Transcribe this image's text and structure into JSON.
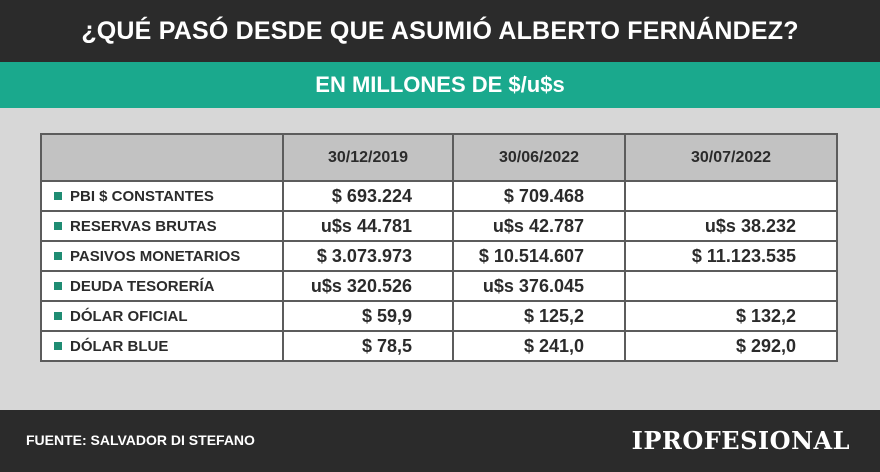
{
  "header": {
    "title": "¿QUÉ PASÓ DESDE QUE ASUMIÓ ALBERTO FERNÁNDEZ?",
    "subtitle": "EN MILLONES DE $/u$s"
  },
  "table": {
    "columns": [
      "",
      "30/12/2019",
      "30/06/2022",
      "30/07/2022"
    ],
    "rows": [
      {
        "label": "PBI $ CONSTANTES",
        "values": [
          "$ 693.224",
          "$ 709.468",
          ""
        ]
      },
      {
        "label": "RESERVAS BRUTAS",
        "values": [
          "u$s 44.781",
          "u$s 42.787",
          "u$s 38.232"
        ]
      },
      {
        "label": "PASIVOS MONETARIOS",
        "values": [
          "$ 3.073.973",
          "$ 10.514.607",
          "$ 11.123.535"
        ]
      },
      {
        "label": "DEUDA TESORERÍA",
        "values": [
          "u$s 320.526",
          "u$s 376.045",
          ""
        ]
      },
      {
        "label": "DÓLAR OFICIAL",
        "values": [
          "$ 59,9",
          "$ 125,2",
          "$ 132,2"
        ]
      },
      {
        "label": "DÓLAR BLUE",
        "values": [
          "$ 78,5",
          "$ 241,0",
          "$ 292,0"
        ]
      }
    ]
  },
  "footer": {
    "source": "FUENTE: SALVADOR DI STEFANO",
    "logo": "IPROFESIONAL"
  },
  "colors": {
    "background_dark": "#2b2b2b",
    "accent_green": "#1aa98d",
    "panel_gray": "#d7d7d7",
    "header_cell_gray": "#c2c2c2"
  }
}
